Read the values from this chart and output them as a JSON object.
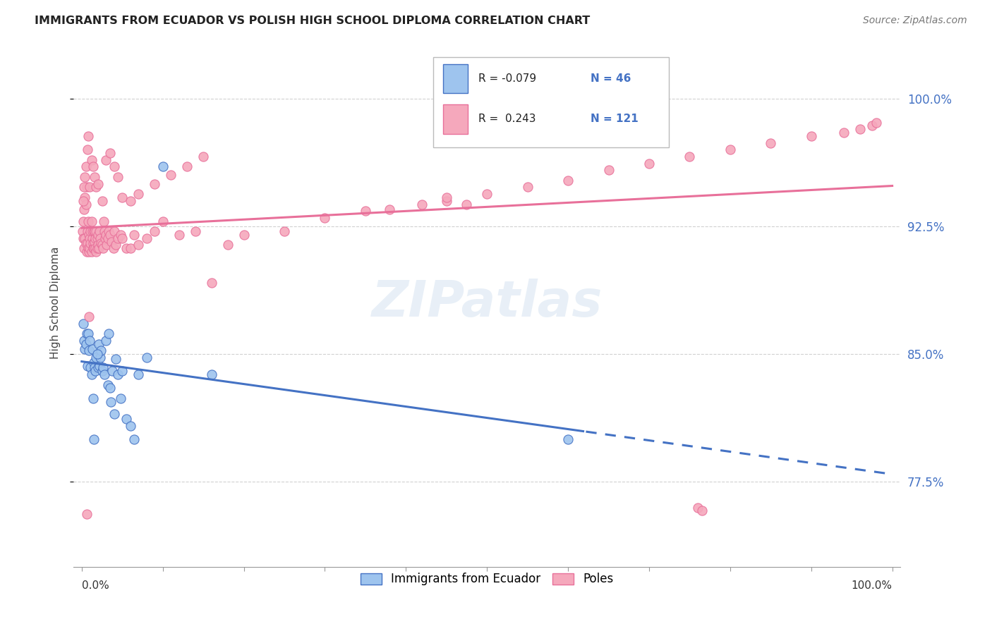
{
  "title": "IMMIGRANTS FROM ECUADOR VS POLISH HIGH SCHOOL DIPLOMA CORRELATION CHART",
  "source": "Source: ZipAtlas.com",
  "ylabel": "High School Diploma",
  "ytick_labels": [
    "77.5%",
    "85.0%",
    "92.5%",
    "100.0%"
  ],
  "ytick_values": [
    0.775,
    0.85,
    0.925,
    1.0
  ],
  "xmin": 0.0,
  "xmax": 1.0,
  "ymin": 0.725,
  "ymax": 1.035,
  "legend_r_ecuador": "-0.079",
  "legend_n_ecuador": "46",
  "legend_r_poles": " 0.243",
  "legend_n_poles": "121",
  "color_ecuador": "#9EC4EE",
  "color_poles": "#F5A8BC",
  "color_ecuador_line": "#4472C4",
  "color_poles_line": "#E8709A",
  "watermark": "ZIPatlas",
  "ecuador_x": [
    0.002,
    0.003,
    0.004,
    0.005,
    0.006,
    0.007,
    0.008,
    0.009,
    0.01,
    0.011,
    0.012,
    0.013,
    0.014,
    0.015,
    0.016,
    0.017,
    0.018,
    0.02,
    0.021,
    0.022,
    0.023,
    0.024,
    0.025,
    0.026,
    0.028,
    0.03,
    0.032,
    0.033,
    0.035,
    0.036,
    0.038,
    0.04,
    0.042,
    0.045,
    0.048,
    0.05,
    0.055,
    0.06,
    0.065,
    0.07,
    0.08,
    0.1,
    0.16,
    0.6,
    0.015,
    0.019
  ],
  "ecuador_y": [
    0.868,
    0.858,
    0.853,
    0.856,
    0.862,
    0.843,
    0.862,
    0.852,
    0.858,
    0.842,
    0.838,
    0.853,
    0.824,
    0.845,
    0.842,
    0.84,
    0.848,
    0.842,
    0.856,
    0.843,
    0.848,
    0.852,
    0.84,
    0.842,
    0.838,
    0.858,
    0.832,
    0.862,
    0.83,
    0.822,
    0.84,
    0.815,
    0.847,
    0.838,
    0.824,
    0.84,
    0.812,
    0.808,
    0.8,
    0.838,
    0.848,
    0.96,
    0.838,
    0.8,
    0.8,
    0.85
  ],
  "poles_x": [
    0.001,
    0.002,
    0.002,
    0.003,
    0.003,
    0.004,
    0.004,
    0.005,
    0.005,
    0.006,
    0.006,
    0.007,
    0.007,
    0.008,
    0.008,
    0.009,
    0.009,
    0.01,
    0.01,
    0.011,
    0.011,
    0.012,
    0.012,
    0.013,
    0.013,
    0.014,
    0.014,
    0.015,
    0.015,
    0.016,
    0.016,
    0.017,
    0.017,
    0.018,
    0.018,
    0.019,
    0.019,
    0.02,
    0.02,
    0.021,
    0.022,
    0.023,
    0.024,
    0.025,
    0.026,
    0.027,
    0.028,
    0.029,
    0.03,
    0.031,
    0.032,
    0.033,
    0.035,
    0.037,
    0.039,
    0.04,
    0.042,
    0.045,
    0.048,
    0.05,
    0.055,
    0.06,
    0.065,
    0.07,
    0.08,
    0.09,
    0.1,
    0.12,
    0.14,
    0.16,
    0.18,
    0.2,
    0.25,
    0.3,
    0.35,
    0.38,
    0.42,
    0.45,
    0.5,
    0.55,
    0.6,
    0.65,
    0.7,
    0.75,
    0.8,
    0.85,
    0.9,
    0.94,
    0.96,
    0.975,
    0.98,
    0.002,
    0.003,
    0.004,
    0.005,
    0.006,
    0.007,
    0.008,
    0.009,
    0.01,
    0.012,
    0.014,
    0.016,
    0.018,
    0.02,
    0.025,
    0.03,
    0.035,
    0.04,
    0.045,
    0.05,
    0.06,
    0.07,
    0.09,
    0.11,
    0.13,
    0.15,
    0.45,
    0.475,
    0.76,
    0.765
  ],
  "poles_y": [
    0.922,
    0.918,
    0.928,
    0.912,
    0.935,
    0.918,
    0.942,
    0.915,
    0.938,
    0.91,
    0.948,
    0.922,
    0.915,
    0.928,
    0.912,
    0.92,
    0.91,
    0.918,
    0.912,
    0.915,
    0.922,
    0.91,
    0.928,
    0.918,
    0.922,
    0.915,
    0.912,
    0.912,
    0.922,
    0.916,
    0.922,
    0.918,
    0.912,
    0.91,
    0.922,
    0.918,
    0.912,
    0.92,
    0.914,
    0.912,
    0.922,
    0.918,
    0.915,
    0.914,
    0.912,
    0.928,
    0.922,
    0.918,
    0.92,
    0.914,
    0.918,
    0.922,
    0.92,
    0.916,
    0.912,
    0.922,
    0.914,
    0.918,
    0.92,
    0.918,
    0.912,
    0.912,
    0.92,
    0.914,
    0.918,
    0.922,
    0.928,
    0.92,
    0.922,
    0.892,
    0.914,
    0.92,
    0.922,
    0.93,
    0.934,
    0.935,
    0.938,
    0.94,
    0.944,
    0.948,
    0.952,
    0.958,
    0.962,
    0.966,
    0.97,
    0.974,
    0.978,
    0.98,
    0.982,
    0.984,
    0.986,
    0.94,
    0.948,
    0.954,
    0.96,
    0.756,
    0.97,
    0.978,
    0.872,
    0.948,
    0.964,
    0.96,
    0.954,
    0.948,
    0.95,
    0.94,
    0.964,
    0.968,
    0.96,
    0.954,
    0.942,
    0.94,
    0.944,
    0.95,
    0.955,
    0.96,
    0.966,
    0.942,
    0.938,
    0.76,
    0.758
  ]
}
